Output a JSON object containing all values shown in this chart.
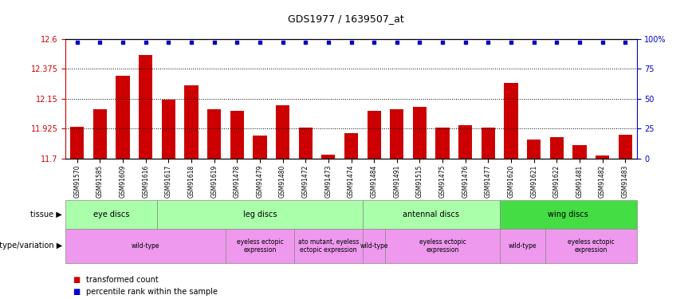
{
  "title": "GDS1977 / 1639507_at",
  "samples": [
    "GSM91570",
    "GSM91585",
    "GSM91609",
    "GSM91616",
    "GSM91617",
    "GSM91618",
    "GSM91619",
    "GSM91478",
    "GSM91479",
    "GSM91480",
    "GSM91472",
    "GSM91473",
    "GSM91474",
    "GSM91484",
    "GSM91491",
    "GSM91515",
    "GSM91475",
    "GSM91476",
    "GSM91477",
    "GSM91620",
    "GSM91621",
    "GSM91622",
    "GSM91481",
    "GSM91482",
    "GSM91483"
  ],
  "bar_values": [
    11.94,
    12.07,
    12.32,
    12.48,
    12.14,
    12.25,
    12.07,
    12.06,
    11.87,
    12.1,
    11.93,
    11.73,
    11.89,
    12.06,
    12.07,
    12.09,
    11.93,
    11.95,
    11.93,
    12.27,
    11.84,
    11.86,
    11.8,
    11.72,
    11.88
  ],
  "ymin": 11.7,
  "ymax": 12.6,
  "yticks": [
    11.7,
    11.925,
    12.15,
    12.375,
    12.6
  ],
  "ytick_labels": [
    "11.7",
    "11.925",
    "12.15",
    "12.375",
    "12.6"
  ],
  "right_yticks": [
    0,
    25,
    50,
    75,
    100
  ],
  "right_ytick_labels": [
    "0",
    "25",
    "50",
    "75",
    "100%"
  ],
  "bar_color": "#cc0000",
  "dot_color": "#0000cc",
  "tissue_groups": [
    {
      "label": "eye discs",
      "start": 0,
      "end": 4
    },
    {
      "label": "leg discs",
      "start": 4,
      "end": 13
    },
    {
      "label": "antennal discs",
      "start": 13,
      "end": 19
    },
    {
      "label": "wing discs",
      "start": 19,
      "end": 25
    }
  ],
  "tissue_light_color": "#aaffaa",
  "tissue_dark_color": "#44dd44",
  "tissue_light_indices": [
    0,
    1,
    2
  ],
  "tissue_dark_indices": [
    3
  ],
  "genotype_groups": [
    {
      "label": "wild-type",
      "start": 0,
      "end": 7
    },
    {
      "label": "eyeless ectopic\nexpression",
      "start": 7,
      "end": 10
    },
    {
      "label": "ato mutant, eyeless\nectopic expression",
      "start": 10,
      "end": 13
    },
    {
      "label": "wild-type",
      "start": 13,
      "end": 14
    },
    {
      "label": "eyeless ectopic\nexpression",
      "start": 14,
      "end": 19
    },
    {
      "label": "wild-type",
      "start": 19,
      "end": 21
    },
    {
      "label": "eyeless ectopic\nexpression",
      "start": 21,
      "end": 25
    }
  ],
  "geno_color": "#ee99ee",
  "legend_items": [
    {
      "label": "transformed count",
      "color": "#cc0000"
    },
    {
      "label": "percentile rank within the sample",
      "color": "#0000cc"
    }
  ],
  "fig_width": 8.68,
  "fig_height": 3.75,
  "dpi": 100
}
